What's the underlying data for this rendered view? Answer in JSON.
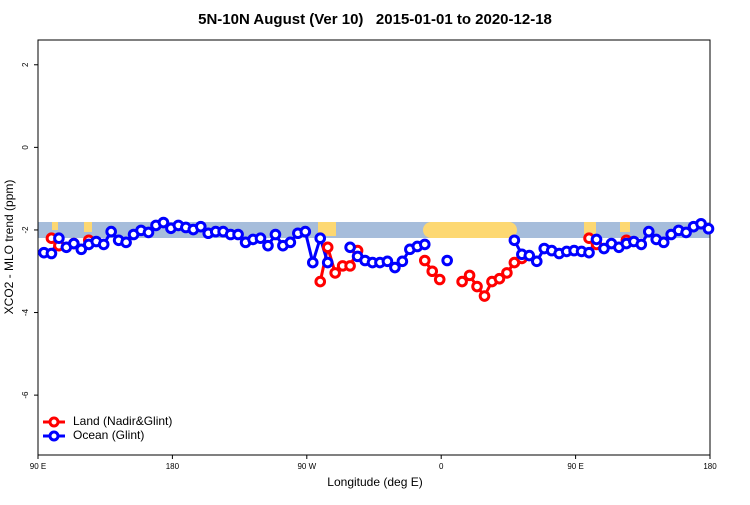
{
  "chart_data": {
    "type": "line",
    "title": "5N-10N August (Ver 10)   2015-01-01 to 2020-12-18",
    "x_label": "Longitude (deg E)",
    "y_label": "XCO2 - MLO trend (ppm)",
    "xlim": [
      90,
      540
    ],
    "ylim": [
      -7.45,
      2.6
    ],
    "xticks": [
      {
        "value": 90,
        "label": "90 E"
      },
      180,
      {
        "value": 270,
        "label": "90 W"
      },
      {
        "value": 360,
        "label": "0"
      },
      {
        "value": 450,
        "label": "90 E"
      },
      {
        "value": 540,
        "label": "180"
      }
    ],
    "yticks": [
      2,
      0,
      -2,
      -4,
      -6
    ],
    "legend": "bottomleft",
    "x": [
      94,
      99,
      104,
      109,
      114,
      119,
      124,
      129,
      134,
      139,
      144,
      149,
      154,
      159,
      164,
      169,
      174,
      179,
      184,
      189,
      194,
      199,
      204,
      209,
      214,
      219,
      224,
      229,
      234,
      239,
      244,
      249,
      254,
      259,
      264,
      269,
      274,
      279,
      284,
      289,
      294,
      299,
      304,
      309,
      314,
      319,
      324,
      329,
      334,
      339,
      344,
      349,
      354,
      359,
      364,
      369,
      374,
      379,
      384,
      389,
      394,
      399,
      404,
      409,
      414,
      419,
      424,
      429,
      434,
      439,
      444,
      449,
      454,
      459,
      464,
      469,
      474,
      479,
      484,
      489,
      494,
      499,
      504,
      509,
      514,
      519,
      524,
      529,
      534,
      539
    ],
    "series": [
      {
        "name": "Land (Nadir&Glint)",
        "color": "#ff0000",
        "values": [
          null,
          -2.2,
          -2.38,
          null,
          -2.33,
          null,
          -2.25,
          null,
          null,
          null,
          null,
          null,
          null,
          null,
          null,
          null,
          null,
          null,
          null,
          null,
          null,
          null,
          null,
          null,
          null,
          null,
          null,
          null,
          null,
          null,
          null,
          null,
          null,
          null,
          null,
          null,
          null,
          -3.25,
          -2.42,
          -3.04,
          -2.87,
          -2.87,
          -2.5,
          null,
          null,
          null,
          null,
          null,
          null,
          null,
          null,
          -2.74,
          -3.0,
          -3.2,
          null,
          null,
          -3.25,
          -3.1,
          -3.37,
          -3.6,
          -3.25,
          -3.18,
          -3.04,
          -2.79,
          -2.69,
          null,
          null,
          null,
          null,
          null,
          null,
          null,
          null,
          -2.2,
          -2.35,
          null,
          null,
          null,
          -2.25,
          null,
          null,
          null,
          null,
          null,
          null,
          null,
          null,
          null,
          null,
          null
        ]
      },
      {
        "name": "Ocean (Glint)",
        "color": "#0000ff",
        "values": [
          -2.55,
          -2.57,
          -2.2,
          -2.42,
          -2.33,
          -2.47,
          -2.35,
          -2.28,
          -2.35,
          -2.04,
          -2.25,
          -2.3,
          -2.11,
          -2.01,
          -2.06,
          -1.89,
          -1.82,
          -1.96,
          -1.89,
          -1.94,
          -1.99,
          -1.92,
          -2.08,
          -2.04,
          -2.04,
          -2.11,
          -2.11,
          -2.3,
          -2.23,
          -2.2,
          -2.38,
          -2.11,
          -2.38,
          -2.3,
          -2.08,
          -2.04,
          -2.79,
          -2.2,
          -2.79,
          null,
          null,
          -2.42,
          -2.64,
          -2.74,
          -2.79,
          -2.79,
          -2.76,
          -2.91,
          -2.76,
          -2.47,
          -2.4,
          -2.35,
          null,
          null,
          -2.74,
          null,
          null,
          null,
          null,
          null,
          null,
          null,
          null,
          -2.25,
          -2.59,
          -2.62,
          -2.76,
          -2.45,
          -2.5,
          -2.57,
          -2.52,
          -2.5,
          -2.52,
          -2.55,
          -2.23,
          -2.45,
          -2.33,
          -2.42,
          -2.33,
          -2.28,
          -2.35,
          -2.04,
          -2.23,
          -2.3,
          -2.11,
          -2.01,
          -2.06,
          -1.92,
          -1.85,
          -1.97
        ]
      }
    ]
  }
}
